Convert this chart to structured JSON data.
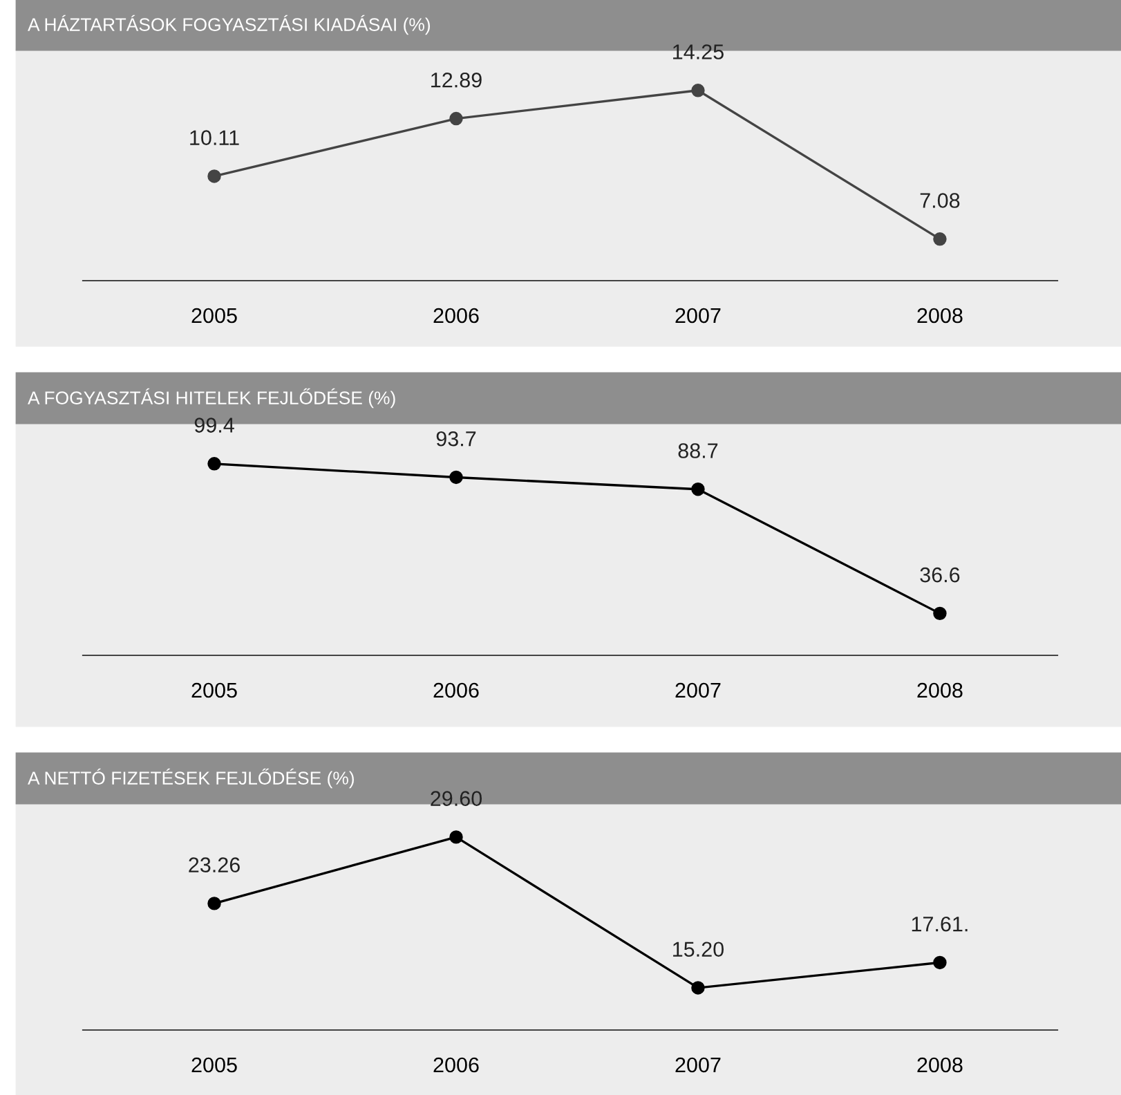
{
  "chart_data": [
    {
      "type": "line",
      "title": "A HÁZTARTÁSOK FOGYASZTÁSI KIADÁSAI (%)",
      "categories": [
        "2005",
        "2006",
        "2007",
        "2008"
      ],
      "marker": "circle",
      "series": [
        {
          "color": "#444444",
          "values": [
            10.11,
            12.89,
            14.25,
            7.08
          ],
          "value_labels": [
            "10.11",
            "12.89",
            "14.25",
            "7.08"
          ]
        }
      ]
    },
    {
      "type": "line",
      "title": "A FOGYASZTÁSI HITELEK FEJLŐDÉSE (%)",
      "categories": [
        "2005",
        "2006",
        "2007",
        "2008"
      ],
      "marker": "circle",
      "series": [
        {
          "color": "#000000",
          "values": [
            99.4,
            93.7,
            88.7,
            36.6
          ],
          "value_labels": [
            "99.4",
            "93.7",
            "88.7",
            "36.6"
          ]
        }
      ]
    },
    {
      "type": "line",
      "title": "A NETTÓ FIZETÉSEK FEJLŐDÉSE (%)",
      "categories": [
        "2005",
        "2006",
        "2007",
        "2008"
      ],
      "marker": "circle",
      "series": [
        {
          "color": "#000000",
          "values": [
            23.26,
            29.6,
            15.2,
            17.61
          ],
          "value_labels": [
            "23.26",
            "29.60",
            "15.20",
            "17.61."
          ]
        }
      ]
    }
  ]
}
